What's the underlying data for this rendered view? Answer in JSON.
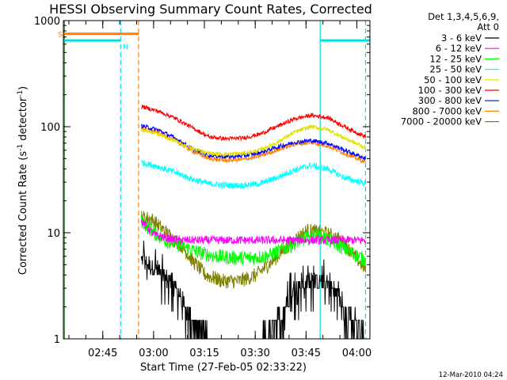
{
  "chart_data": {
    "type": "line",
    "title": "HESSI Observing Summary Count Rates, Corrected",
    "xlabel": "Start Time (27-Feb-05 02:33:22)",
    "ylabel_main": "Corrected Count Rate (s",
    "ylabel_sup1": "-1",
    "ylabel_mid": " detector",
    "ylabel_sup2": "-1",
    "ylabel_end": ")",
    "yscale": "log",
    "ylim": [
      1,
      1000
    ],
    "xlim_minutes": [
      0,
      90.5
    ],
    "x_unit": "minutes since 02:33:22",
    "x_ticks": [
      {
        "label": "02:45",
        "min": 11.63
      },
      {
        "label": "03:00",
        "min": 26.63
      },
      {
        "label": "03:15",
        "min": 41.63
      },
      {
        "label": "03:30",
        "min": 56.63
      },
      {
        "label": "03:45",
        "min": 71.63
      },
      {
        "label": "04:00",
        "min": 86.63
      }
    ],
    "y_ticks": [
      {
        "label": "1",
        "value": 1
      },
      {
        "label": "10",
        "value": 10
      },
      {
        "label": "100",
        "value": 100
      },
      {
        "label": "1000",
        "value": 1000
      }
    ],
    "legend_header": [
      "Det 1,3,4,5,6,9,",
      "Att 0"
    ],
    "legend_position": "right",
    "footer_timestamp": "12-Mar-2010 04:24",
    "flags": [
      {
        "label": "S",
        "color": "#ff8000",
        "value": 750,
        "segments": [
          [
            0,
            22.2
          ]
        ]
      },
      {
        "label": "N",
        "color": "#00e0e0",
        "value": 650,
        "segments": [
          [
            0,
            16.9
          ],
          [
            75.8,
            90.5
          ]
        ]
      }
    ],
    "vlines": [
      {
        "min": 0.3,
        "color": "#00b000",
        "dashed": false
      },
      {
        "min": 16.9,
        "color": "#00e0e0",
        "dashed": true
      },
      {
        "min": 22.2,
        "color": "#ff8000",
        "dashed": true
      },
      {
        "min": 75.8,
        "color": "#00e0e0",
        "dashed": false
      },
      {
        "min": 89.2,
        "color": "#00e0e0",
        "dashed": true
      }
    ],
    "data_start_min": 23.0,
    "data_end_min": 89.3,
    "series": [
      {
        "name": "3 - 6 keV",
        "color": "#000000",
        "noise": 0.08,
        "x": [
          23,
          28,
          33,
          38,
          43,
          48,
          53,
          58,
          63,
          68,
          73,
          78,
          83,
          86,
          89.3
        ],
        "y": [
          5.5,
          4.5,
          3.0,
          1.5,
          1.0,
          1.0,
          1.0,
          1.0,
          1.5,
          3.0,
          3.5,
          3.5,
          2.0,
          1.5,
          1.0
        ]
      },
      {
        "name": "6 - 12 keV",
        "color": "#ff00ff",
        "noise": 0.04,
        "x": [
          23,
          25,
          27,
          30,
          34,
          40,
          50,
          60,
          70,
          80,
          89.3
        ],
        "y": [
          13,
          11,
          9.5,
          9.0,
          8.5,
          8.5,
          8.5,
          8.5,
          8.5,
          8.5,
          8.5
        ]
      },
      {
        "name": "12 - 25 keV",
        "color": "#00ff00",
        "noise": 0.07,
        "x": [
          23,
          26,
          30,
          35,
          40,
          45,
          50,
          55,
          60,
          65,
          70,
          75,
          80,
          85,
          89.3
        ],
        "y": [
          13,
          10.5,
          8.5,
          7.5,
          6.5,
          6.0,
          5.8,
          5.8,
          6.0,
          7.0,
          8.5,
          9.5,
          8.0,
          6.5,
          5.5
        ]
      },
      {
        "name": "25 - 50 keV",
        "color": "#00ffff",
        "noise": 0.03,
        "x": [
          23,
          28,
          33,
          38,
          43,
          48,
          53,
          58,
          63,
          68,
          73,
          78,
          83,
          89.3
        ],
        "y": [
          46,
          42,
          37,
          32,
          29,
          28,
          28,
          29,
          33,
          39,
          43,
          40,
          33,
          29
        ]
      },
      {
        "name": "50 - 100 keV",
        "color": "#e0e000",
        "noise": 0.02,
        "x": [
          23,
          28,
          33,
          38,
          43,
          48,
          53,
          58,
          63,
          68,
          73,
          78,
          83,
          89.3
        ],
        "y": [
          93,
          85,
          73,
          62,
          56,
          55,
          56,
          60,
          71,
          88,
          100,
          94,
          78,
          63
        ]
      },
      {
        "name": "100 - 300 keV",
        "color": "#ff0000",
        "noise": 0.02,
        "x": [
          23,
          28,
          33,
          38,
          43,
          48,
          53,
          58,
          63,
          68,
          73,
          78,
          83,
          89.3
        ],
        "y": [
          155,
          140,
          120,
          98,
          80,
          77,
          78,
          85,
          100,
          118,
          128,
          122,
          100,
          80
        ]
      },
      {
        "name": "300 - 800 keV",
        "color": "#0000ff",
        "noise": 0.02,
        "x": [
          23,
          28,
          33,
          38,
          43,
          48,
          53,
          58,
          63,
          68,
          73,
          78,
          83,
          89.3
        ],
        "y": [
          102,
          93,
          78,
          62,
          54,
          52,
          53,
          57,
          64,
          71,
          74,
          70,
          60,
          50
        ]
      },
      {
        "name": "800 - 7000 keV",
        "color": "#ff8000",
        "noise": 0.02,
        "x": [
          23,
          28,
          33,
          38,
          43,
          48,
          53,
          58,
          63,
          68,
          73,
          78,
          83,
          89.3
        ],
        "y": [
          97,
          88,
          74,
          59,
          50,
          48,
          49,
          53,
          60,
          68,
          71,
          66,
          56,
          46
        ]
      },
      {
        "name": "7000 - 20000 keV",
        "color": "#808000",
        "noise": 0.07,
        "x": [
          23,
          26,
          29,
          32,
          35,
          38,
          42,
          47,
          52,
          57,
          62,
          67,
          72,
          77,
          82,
          86,
          89.3
        ],
        "y": [
          14,
          13.5,
          11,
          9,
          7.5,
          5.5,
          4.0,
          3.5,
          3.5,
          4.0,
          5.5,
          8.0,
          10.5,
          10,
          8.5,
          6,
          4.5
        ]
      }
    ]
  }
}
